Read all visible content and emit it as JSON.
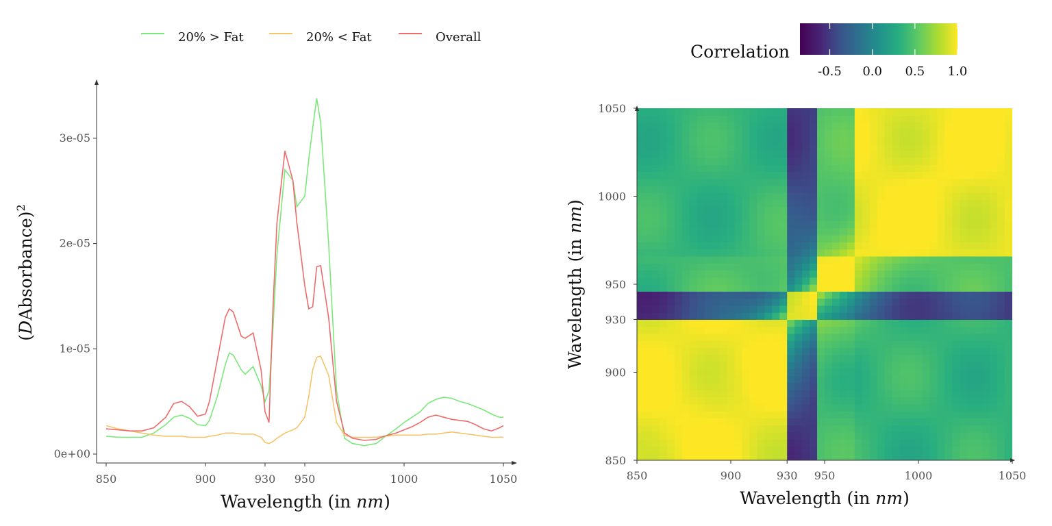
{
  "chart_data": [
    {
      "type": "line",
      "xlabel": "Wavelength (in nm)",
      "ylabel": "(DAbsorbance)^2",
      "xlim": [
        850,
        1050
      ],
      "ylim": [
        0,
        3.5e-05
      ],
      "x_ticks": [
        850,
        900,
        930,
        950,
        1000,
        1050
      ],
      "x_tick_labels": [
        "850",
        "900",
        "930",
        "950",
        "1000",
        "1050"
      ],
      "y_ticks": [
        0,
        1e-05,
        2e-05,
        3e-05
      ],
      "y_tick_labels": [
        "0e+00",
        "1e-05",
        "2e-05",
        "3e-05"
      ],
      "legend_position": "top",
      "x": [
        850,
        856,
        862,
        868,
        874,
        880,
        884,
        888,
        892,
        896,
        900,
        902,
        906,
        910,
        912,
        914,
        918,
        920,
        924,
        928,
        930,
        932,
        934,
        936,
        940,
        944,
        946,
        950,
        952,
        954,
        956,
        958,
        962,
        966,
        970,
        974,
        980,
        986,
        990,
        996,
        1000,
        1004,
        1008,
        1012,
        1016,
        1020,
        1024,
        1028,
        1032,
        1036,
        1040,
        1044,
        1048,
        1050
      ],
      "series": [
        {
          "name": "20% > Fat",
          "color": "#7be87b",
          "values": [
            1.7e-06,
            1.6e-06,
            1.6e-06,
            1.6e-06,
            2e-06,
            2.8e-06,
            3.5e-06,
            3.7e-06,
            3.4e-06,
            2.8e-06,
            2.7e-06,
            3.2e-06,
            5.5e-06,
            8.5e-06,
            9.6e-06,
            9.4e-06,
            8e-06,
            7.6e-06,
            8.3e-06,
            6.5e-06,
            5e-06,
            6e-06,
            1.2e-05,
            1.9e-05,
            2.7e-05,
            2.6e-05,
            2.35e-05,
            2.45e-05,
            2.8e-05,
            3.1e-05,
            3.38e-05,
            3.15e-05,
            2e-05,
            6e-06,
            1.5e-06,
            1e-06,
            8e-07,
            1e-06,
            1.6e-06,
            2.4e-06,
            3e-06,
            3.5e-06,
            4e-06,
            4.8e-06,
            5.2e-06,
            5.4e-06,
            5.3e-06,
            5e-06,
            4.8e-06,
            4.5e-06,
            4.2e-06,
            3.8e-06,
            3.5e-06,
            3.5e-06
          ]
        },
        {
          "name": "20% < Fat",
          "color": "#f6c46a",
          "values": [
            2.7e-06,
            2.4e-06,
            2.2e-06,
            2e-06,
            1.8e-06,
            1.7e-06,
            1.7e-06,
            1.7e-06,
            1.6e-06,
            1.6e-06,
            1.6e-06,
            1.7e-06,
            1.8e-06,
            2e-06,
            2e-06,
            2e-06,
            1.9e-06,
            1.9e-06,
            1.9e-06,
            1.6e-06,
            1.1e-06,
            1e-06,
            1.2e-06,
            1.5e-06,
            2e-06,
            2.3e-06,
            2.5e-06,
            3.5e-06,
            5.5e-06,
            8e-06,
            9.2e-06,
            9.3e-06,
            7.5e-06,
            3e-06,
            1.8e-06,
            1.6e-06,
            1.6e-06,
            1.6e-06,
            1.7e-06,
            1.8e-06,
            1.8e-06,
            1.8e-06,
            1.8e-06,
            1.9e-06,
            1.9e-06,
            2e-06,
            2.1e-06,
            2e-06,
            1.9e-06,
            1.8e-06,
            1.7e-06,
            1.6e-06,
            1.6e-06,
            1.6e-06
          ]
        },
        {
          "name": "Overall",
          "color": "#ee6b6b",
          "values": [
            2.4e-06,
            2.3e-06,
            2.2e-06,
            2.2e-06,
            2.5e-06,
            3.5e-06,
            4.8e-06,
            5e-06,
            4.5e-06,
            3.6e-06,
            3.8e-06,
            5e-06,
            9e-06,
            1.3e-05,
            1.38e-05,
            1.35e-05,
            1.12e-05,
            1.1e-05,
            1.15e-05,
            8e-06,
            4e-06,
            3e-06,
            1.4e-05,
            2.2e-05,
            2.88e-05,
            2.6e-05,
            2.2e-05,
            1.6e-05,
            1.38e-05,
            1.4e-05,
            1.78e-05,
            1.79e-05,
            1.3e-05,
            5e-06,
            2e-06,
            1.5e-06,
            1.3e-06,
            1.4e-06,
            1.7e-06,
            2e-06,
            2.3e-06,
            2.6e-06,
            3e-06,
            3.5e-06,
            3.7e-06,
            3.5e-06,
            3.3e-06,
            3.2e-06,
            3.1e-06,
            2.8e-06,
            2.4e-06,
            2.2e-06,
            2.5e-06,
            2.7e-06
          ]
        }
      ]
    },
    {
      "type": "heatmap",
      "xlabel": "Wavelength (in nm)",
      "ylabel": "Wavelength (in nm)",
      "xlim": [
        850,
        1050
      ],
      "ylim": [
        850,
        1050
      ],
      "x_ticks": [
        850,
        900,
        930,
        950,
        1000,
        1050
      ],
      "x_tick_labels": [
        "850",
        "900",
        "930",
        "950",
        "1000",
        "1050"
      ],
      "y_ticks": [
        850,
        900,
        930,
        950,
        1000,
        1050
      ],
      "y_tick_labels": [
        "850",
        "900",
        "930",
        "950",
        "1000",
        "1050"
      ],
      "colorbar": {
        "title": "Correlation",
        "range": [
          -0.85,
          1.0
        ],
        "ticks": [
          -0.5,
          0.0,
          0.5,
          1.0
        ],
        "tick_labels": [
          "-0.5",
          "0.0",
          "0.5",
          "1.0"
        ],
        "colormap": "viridis"
      },
      "grid_step_nm": 4,
      "region_boundaries_nm": [
        930,
        947,
        966
      ],
      "block_correlation": [
        [
          0.95,
          -0.55,
          0.4,
          0.35
        ],
        [
          -0.55,
          0.9,
          -0.45,
          -0.5
        ],
        [
          0.4,
          -0.45,
          0.95,
          0.45
        ],
        [
          0.35,
          -0.5,
          0.45,
          0.95
        ]
      ],
      "legend_position": "top-right"
    }
  ]
}
